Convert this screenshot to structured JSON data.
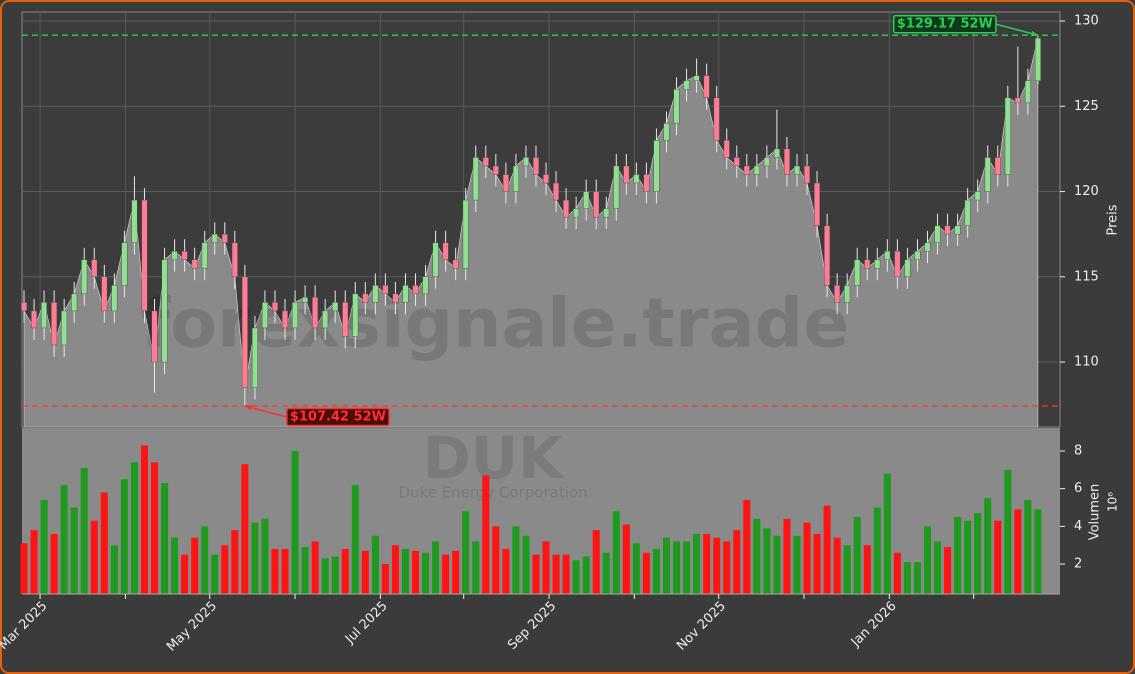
{
  "chart_data": [
    {
      "type": "candlestick",
      "watermark": "forexsignale.trade",
      "y_label": "Preis",
      "xlim": [
        -0.2,
        103.2
      ],
      "ylim": [
        106.19,
        130.53
      ],
      "yticks": [
        110,
        115,
        120,
        125,
        130
      ],
      "grid": true,
      "up_color": "#8fe08f",
      "down_color": "#ff7d92",
      "area_color": "#8a8a8a",
      "open": [
        113.5,
        113,
        112,
        113.5,
        111,
        113,
        114,
        116,
        115,
        113,
        114.5,
        117,
        119.5,
        113,
        110,
        116,
        116.5,
        116,
        115.5,
        117,
        117.5,
        117,
        115,
        108.5,
        112,
        113.5,
        113,
        112,
        113.5,
        113.8,
        112,
        113,
        113.5,
        111.5,
        114,
        113.5,
        114.5,
        114,
        113.5,
        114.5,
        114,
        115,
        117,
        116,
        115.5,
        119.5,
        122,
        121.5,
        121,
        120,
        121.5,
        122,
        121,
        120.5,
        119.5,
        118.5,
        119,
        120,
        118.5,
        119,
        121.5,
        120.5,
        121,
        120,
        123,
        124,
        126,
        126.5,
        126.8,
        125.5,
        123,
        122,
        121.5,
        121,
        121.5,
        122,
        122.5,
        121,
        121.5,
        120.5,
        118,
        114.5,
        113.5,
        114.5,
        116,
        115.5,
        116,
        116.5,
        115,
        116,
        116.5,
        117,
        118,
        117.5,
        118,
        119.5,
        120,
        122,
        121,
        125.5,
        125.2,
        126.5
      ],
      "high": [
        114.2,
        113.7,
        114.2,
        114.2,
        113.7,
        114.7,
        116.7,
        116.7,
        115.7,
        115.2,
        117.7,
        120.9,
        120.2,
        113.7,
        116.7,
        117.2,
        117.2,
        116.7,
        117.7,
        118.2,
        118.2,
        117.7,
        115.7,
        112.7,
        114.2,
        114.2,
        113.7,
        114.2,
        114.5,
        114.5,
        113.7,
        114.2,
        114.2,
        114.7,
        114.7,
        115.2,
        115.2,
        114.7,
        115.2,
        115.2,
        115.7,
        117.7,
        117.7,
        116.7,
        120.2,
        122.7,
        122.7,
        122.2,
        121.7,
        122.2,
        122.7,
        122.7,
        121.7,
        121.2,
        120.2,
        119.7,
        120.7,
        120.7,
        119.7,
        122.2,
        122.2,
        121.7,
        121.7,
        123.7,
        124.7,
        126.7,
        127.2,
        127.8,
        127.5,
        126.2,
        123.7,
        122.7,
        122.2,
        122.2,
        122.7,
        124.8,
        123.2,
        122.2,
        122.2,
        121.2,
        118.7,
        115.2,
        115.2,
        116.7,
        116.7,
        116.7,
        117.2,
        117.2,
        116.7,
        117.2,
        117.7,
        118.7,
        118.7,
        118.7,
        120.2,
        120.7,
        122.7,
        122.7,
        126.2,
        128.5,
        127.2,
        129.17
      ],
      "low": [
        112.3,
        111.3,
        111.3,
        110.3,
        110.3,
        112.3,
        113.3,
        114.3,
        112.3,
        112.3,
        113.8,
        116.3,
        112.3,
        108.2,
        109.3,
        115.3,
        115.3,
        114.8,
        114.8,
        116.3,
        116.3,
        114.3,
        107.42,
        107.8,
        111.3,
        112.3,
        111.3,
        111.3,
        112.8,
        111.3,
        111.3,
        112.3,
        110.8,
        110.8,
        112.8,
        112.8,
        113.3,
        112.8,
        112.8,
        113.3,
        113.3,
        114.3,
        115.3,
        114.8,
        114.8,
        118.8,
        120.8,
        120.3,
        119.3,
        119.3,
        120.8,
        120.3,
        119.8,
        118.8,
        117.8,
        117.8,
        118.3,
        117.8,
        117.8,
        118.3,
        119.8,
        119.8,
        119.3,
        119.3,
        122.3,
        123.3,
        125.3,
        125.8,
        124.8,
        122.3,
        121.3,
        120.8,
        120.3,
        120.3,
        120.8,
        121.3,
        120.3,
        120.3,
        119.8,
        117.3,
        113.8,
        112.8,
        112.8,
        113.8,
        114.8,
        114.8,
        115.3,
        114.3,
        114.3,
        115.3,
        115.8,
        116.3,
        116.8,
        116.8,
        117.3,
        118.8,
        119.3,
        120.3,
        120.3,
        124.5,
        124.5,
        126.3
      ],
      "close": [
        113,
        112,
        113.5,
        111,
        113,
        114,
        116,
        115,
        113,
        114.5,
        117,
        119.5,
        113,
        110,
        116,
        116.5,
        116,
        115.5,
        117,
        117.5,
        117,
        115,
        108.5,
        112,
        113.5,
        113,
        112,
        113.5,
        113.8,
        112,
        113,
        113.5,
        111.5,
        114,
        113.5,
        114.5,
        114,
        113.5,
        114.5,
        114,
        115,
        117,
        116,
        115.5,
        119.5,
        122,
        121.5,
        121,
        120,
        121.5,
        122,
        121,
        120.5,
        119.5,
        118.5,
        119,
        120,
        118.5,
        119,
        121.5,
        120.5,
        121,
        120,
        123,
        124,
        126,
        126.5,
        126.8,
        125.5,
        123,
        122,
        121.5,
        121,
        121.5,
        122,
        122.5,
        121,
        121.5,
        120.5,
        118,
        114.5,
        113.5,
        114.5,
        116,
        115.5,
        116,
        116.5,
        115,
        116,
        116.5,
        117,
        118,
        117.5,
        118,
        119.5,
        120,
        122,
        121,
        125.5,
        125.2,
        126.5,
        129
      ],
      "annotations": [
        {
          "text": "$129.17 52W",
          "value": 129.17,
          "index": 101,
          "color": "#2ecc55"
        },
        {
          "text": "$107.42 52W",
          "value": 107.42,
          "index": 22,
          "color": "#ff3030"
        }
      ]
    },
    {
      "type": "bar",
      "watermark": "DUK",
      "subtitle": "Duke Energy Corporation",
      "y_label": "Volumen",
      "y_unit": "10⁶",
      "xlim": [
        -0.2,
        103.2
      ],
      "ylim": [
        0.41,
        9.22
      ],
      "yticks": [
        2,
        4,
        6,
        8
      ],
      "xticks": [
        {
          "value": 1.6,
          "label": "Mar 2025"
        },
        {
          "value": 18.5,
          "label": "May 2025"
        },
        {
          "value": 35.5,
          "label": "Jul 2025"
        },
        {
          "value": 52.3,
          "label": "Sep 2025"
        },
        {
          "value": 69.2,
          "label": "Nov 2025"
        },
        {
          "value": 86.2,
          "label": "Jan 2026"
        }
      ],
      "minor_xticks": [
        10.1,
        27.0,
        43.8,
        60.8,
        77.7,
        94.6
      ],
      "up_color": "#1e9a1e",
      "down_color": "#ff1414",
      "values": [
        3.1,
        3.8,
        5.4,
        3.6,
        6.2,
        5.0,
        7.1,
        4.3,
        5.8,
        3.0,
        6.5,
        7.4,
        8.3,
        7.4,
        6.3,
        3.4,
        2.5,
        3.4,
        4.0,
        2.5,
        3.0,
        3.8,
        7.3,
        4.2,
        4.4,
        2.8,
        2.8,
        8.0,
        2.9,
        3.2,
        2.3,
        2.4,
        2.8,
        6.2,
        2.7,
        3.5,
        2.0,
        3.0,
        2.8,
        2.7,
        2.6,
        3.2,
        2.5,
        2.7,
        4.8,
        3.2,
        6.7,
        4.0,
        2.8,
        4.0,
        3.5,
        2.5,
        3.2,
        2.5,
        2.5,
        2.2,
        2.4,
        3.8,
        2.6,
        4.8,
        4.1,
        3.1,
        2.6,
        2.8,
        3.4,
        3.2,
        3.2,
        3.6,
        3.6,
        3.4,
        3.2,
        3.8,
        5.4,
        4.4,
        3.9,
        3.5,
        4.4,
        3.5,
        4.2,
        3.6,
        5.1,
        3.4,
        3.0,
        4.5,
        3.0,
        5.0,
        6.8,
        2.6,
        2.1,
        2.1,
        4.0,
        3.2,
        2.9,
        4.5,
        4.3,
        4.7,
        5.5,
        4.3,
        7.0,
        4.9,
        5.4,
        4.9
      ]
    }
  ]
}
